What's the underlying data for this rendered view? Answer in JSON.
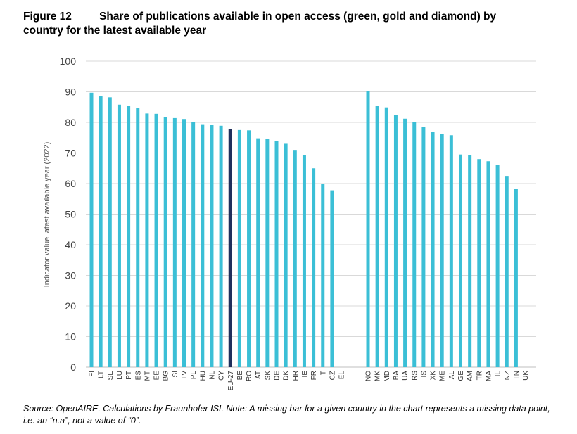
{
  "header": {
    "figure_label": "Figure 12",
    "title_line1": "Share of publications available in open access (green, gold and diamond) by",
    "title_line2": "country for the latest available year"
  },
  "footer": {
    "source": "Source: OpenAIRE. Calculations by Fraunhofer ISI. Note: A missing bar for a given country in the chart represents a missing data point, i.e. an “n.a”, not a value of “0”."
  },
  "colors": {
    "bar": "#3bbfd6",
    "highlight": "#1f2f5c",
    "grid": "#d9d9d9"
  },
  "chart_data": {
    "type": "bar",
    "title": "Share of publications available in open access (green, gold and diamond) by country for the latest available year",
    "ylabel": "Indicator value latest available year (2022)",
    "xlabel": "",
    "ylim": [
      0,
      100
    ],
    "yticks": [
      0,
      10,
      20,
      30,
      40,
      50,
      60,
      70,
      80,
      90,
      100
    ],
    "grid": true,
    "highlight_category": "EU-27",
    "groups": [
      {
        "categories": [
          "FI",
          "LT",
          "SE",
          "LU",
          "PT",
          "ES",
          "MT",
          "EE",
          "BG",
          "SI",
          "LV",
          "PL",
          "HU",
          "NL",
          "CY",
          "EU-27",
          "BE",
          "RO",
          "AT",
          "SK",
          "DE",
          "DK",
          "HR",
          "IE",
          "FR",
          "IT",
          "CZ",
          "EL"
        ],
        "values": [
          89.7,
          88.5,
          88.2,
          85.8,
          85.4,
          84.7,
          82.9,
          82.8,
          81.8,
          81.4,
          81.1,
          80.0,
          79.4,
          79.1,
          78.9,
          77.8,
          77.5,
          77.4,
          74.8,
          74.5,
          73.8,
          73.0,
          71.0,
          69.2,
          65.0,
          60.0,
          57.8,
          null
        ]
      },
      {
        "categories": [
          "NO",
          "MK",
          "MD",
          "BA",
          "UA",
          "RS",
          "IS",
          "XK",
          "ME",
          "AL",
          "GE",
          "AM",
          "TR",
          "MA",
          "IL",
          "NZ",
          "TN",
          "UK"
        ],
        "values": [
          90.2,
          85.3,
          84.9,
          82.5,
          81.2,
          80.2,
          78.5,
          76.8,
          76.2,
          75.8,
          69.5,
          69.2,
          68.0,
          67.3,
          66.2,
          62.5,
          58.2,
          null
        ]
      }
    ]
  }
}
